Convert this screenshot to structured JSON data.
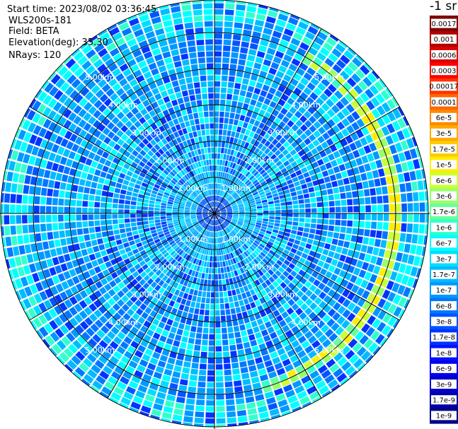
{
  "info": {
    "start_time": "Start time: 2023/08/02 03:36:45",
    "device": "WLS200s-181",
    "field": "Field: BETA",
    "elevation": "Elevation(deg): 35.30",
    "nrays": "NRays: 120"
  },
  "chart_data": {
    "type": "heatmap",
    "projection": "polar-ppi",
    "title": "",
    "rays": 120,
    "range_rings": [
      {
        "value": 1,
        "label": "1.00km"
      },
      {
        "value": 2,
        "label": "2.00km"
      },
      {
        "value": 3,
        "label": "3.00km"
      },
      {
        "value": 4,
        "label": "4.00km"
      },
      {
        "value": 5,
        "label": "5.00km"
      }
    ],
    "max_range_km": 5.9,
    "radial_spokes_deg": [
      0,
      30,
      60,
      90,
      120,
      150,
      180,
      210,
      240,
      270,
      300,
      330
    ],
    "colorbar": {
      "unit_label": "-1 sr",
      "ticks": [
        "0.0017",
        "0.001",
        "0.0006",
        "0.0003",
        "0.00017",
        "0.0001",
        "6e-5",
        "3e-5",
        "1.7e-5",
        "1e-5",
        "6e-6",
        "3e-6",
        "1.7e-6",
        "1e-6",
        "6e-7",
        "3e-7",
        "1.7e-7",
        "1e-7",
        "6e-8",
        "3e-8",
        "1.7e-8",
        "1e-8",
        "6e-9",
        "3e-9",
        "1.7e-9",
        "1e-9"
      ],
      "colors": [
        "#800000",
        "#b00000",
        "#dd0000",
        "#ff0000",
        "#ff3300",
        "#ff6600",
        "#ff8800",
        "#ffaa00",
        "#ffcc00",
        "#ffee00",
        "#ccff33",
        "#99ff66",
        "#66ff99",
        "#33ffcc",
        "#00ffff",
        "#00ddff",
        "#00bbff",
        "#0099ff",
        "#0077ff",
        "#0055ff",
        "#0033ff",
        "#0011ff",
        "#0000ee",
        "#0000cc",
        "#0000aa",
        "#000088"
      ]
    },
    "dominant_signal": {
      "range_km": [
        4.9,
        5.2
      ],
      "azimuth_deg": [
        30,
        165
      ],
      "value_level": "1e-5"
    }
  }
}
